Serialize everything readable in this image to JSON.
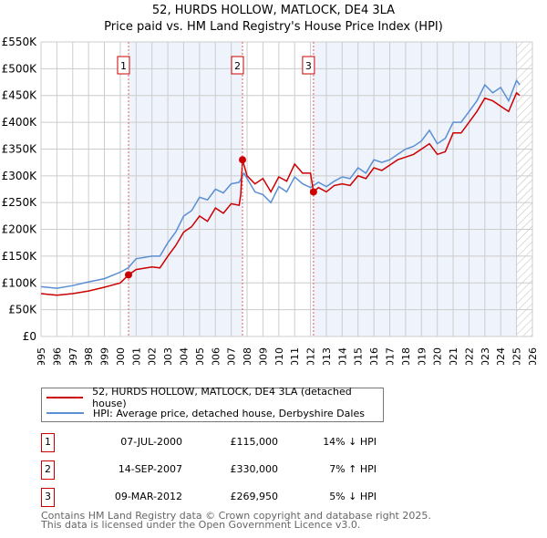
{
  "header": {
    "title_line1": "52, HURDS HOLLOW, MATLOCK, DE4 3LA",
    "title_line2": "Price paid vs. HM Land Registry's House Price Index (HPI)"
  },
  "chart_data": {
    "type": "line",
    "title": "52, HURDS HOLLOW, MATLOCK, DE4 3LA — Price paid vs. HM Land Registry's House Price Index (HPI)",
    "xlim": [
      1995,
      2026
    ],
    "ylim": [
      0,
      550000
    ],
    "x_ticks": [
      "1995",
      "1996",
      "1997",
      "1998",
      "1999",
      "2000",
      "2001",
      "2002",
      "2003",
      "2004",
      "2005",
      "2006",
      "2007",
      "2008",
      "2009",
      "2010",
      "2011",
      "2012",
      "2013",
      "2014",
      "2015",
      "2016",
      "2017",
      "2018",
      "2019",
      "2020",
      "2021",
      "2022",
      "2023",
      "2024",
      "2025",
      "2026"
    ],
    "y_ticks": [
      {
        "v": 0,
        "label": "£0"
      },
      {
        "v": 50000,
        "label": "£50K"
      },
      {
        "v": 100000,
        "label": "£100K"
      },
      {
        "v": 150000,
        "label": "£150K"
      },
      {
        "v": 200000,
        "label": "£200K"
      },
      {
        "v": 250000,
        "label": "£250K"
      },
      {
        "v": 300000,
        "label": "£300K"
      },
      {
        "v": 350000,
        "label": "£350K"
      },
      {
        "v": 400000,
        "label": "£400K"
      },
      {
        "v": 450000,
        "label": "£450K"
      },
      {
        "v": 500000,
        "label": "£500K"
      },
      {
        "v": 550000,
        "label": "£550K"
      }
    ],
    "grid": true,
    "colors": {
      "property": "#cc0000",
      "hpi": "#5b8fd4",
      "shade": "#eef3fc",
      "marker_line": "#e06060"
    },
    "forecast_hatch_from": 2025.0,
    "series": [
      {
        "name": "52, HURDS HOLLOW, MATLOCK, DE4 3LA (detached house)",
        "color": "#cc0000",
        "x": [
          1995,
          1996,
          1997,
          1998,
          1999,
          2000,
          2000.52,
          2001,
          2002,
          2002.5,
          2003,
          2003.5,
          2004,
          2004.5,
          2005,
          2005.5,
          2006,
          2006.5,
          2007,
          2007.5,
          2007.6,
          2007.71,
          2008,
          2008.5,
          2009,
          2009.5,
          2010,
          2010.5,
          2011,
          2011.5,
          2012,
          2012.19,
          2012.5,
          2013,
          2013.5,
          2014,
          2014.5,
          2015,
          2015.5,
          2016,
          2016.5,
          2017,
          2017.5,
          2018,
          2018.5,
          2019,
          2019.5,
          2020,
          2020.5,
          2021,
          2021.5,
          2022,
          2022.5,
          2023,
          2023.5,
          2024,
          2024.5,
          2025,
          2025.2
        ],
        "y": [
          80000,
          77000,
          80000,
          85000,
          92000,
          100000,
          115000,
          125000,
          130000,
          128000,
          150000,
          170000,
          195000,
          205000,
          225000,
          215000,
          240000,
          230000,
          248000,
          245000,
          265000,
          330000,
          300000,
          285000,
          295000,
          270000,
          298000,
          290000,
          322000,
          305000,
          305000,
          269950,
          278000,
          270000,
          282000,
          285000,
          282000,
          300000,
          295000,
          315000,
          310000,
          320000,
          330000,
          335000,
          340000,
          350000,
          360000,
          340000,
          345000,
          380000,
          380000,
          400000,
          420000,
          445000,
          440000,
          430000,
          420000,
          455000,
          450000
        ]
      },
      {
        "name": "HPI: Average price, detached house, Derbyshire Dales",
        "color": "#5b8fd4",
        "x": [
          1995,
          1996,
          1997,
          1998,
          1999,
          2000,
          2000.5,
          2001,
          2002,
          2002.5,
          2003,
          2003.5,
          2004,
          2004.5,
          2005,
          2005.5,
          2006,
          2006.5,
          2007,
          2007.5,
          2007.8,
          2008,
          2008.5,
          2009,
          2009.5,
          2010,
          2010.5,
          2011,
          2011.5,
          2012,
          2012.5,
          2013,
          2013.5,
          2014,
          2014.5,
          2015,
          2015.5,
          2016,
          2016.5,
          2017,
          2017.5,
          2018,
          2018.5,
          2019,
          2019.5,
          2020,
          2020.5,
          2021,
          2021.5,
          2022,
          2022.5,
          2023,
          2023.5,
          2024,
          2024.5,
          2025,
          2025.2
        ],
        "y": [
          93000,
          90000,
          95000,
          102000,
          108000,
          120000,
          128000,
          145000,
          150000,
          150000,
          175000,
          195000,
          225000,
          235000,
          260000,
          255000,
          275000,
          268000,
          285000,
          288000,
          305000,
          295000,
          270000,
          265000,
          250000,
          280000,
          270000,
          298000,
          285000,
          278000,
          288000,
          280000,
          290000,
          298000,
          295000,
          315000,
          305000,
          330000,
          325000,
          330000,
          340000,
          350000,
          355000,
          365000,
          385000,
          360000,
          370000,
          400000,
          400000,
          420000,
          440000,
          470000,
          455000,
          465000,
          440000,
          478000,
          470000
        ]
      }
    ],
    "sales": [
      {
        "num": "1",
        "x": 2000.52,
        "price": 115000
      },
      {
        "num": "2",
        "x": 2007.71,
        "price": 330000
      },
      {
        "num": "3",
        "x": 2012.19,
        "price": 269950
      }
    ]
  },
  "legend": {
    "property": "52, HURDS HOLLOW, MATLOCK, DE4 3LA (detached house)",
    "hpi": "HPI: Average price, detached house, Derbyshire Dales"
  },
  "sales_table": [
    {
      "num": "1",
      "date": "07-JUL-2000",
      "price": "£115,000",
      "hpi": "14% ↓ HPI"
    },
    {
      "num": "2",
      "date": "14-SEP-2007",
      "price": "£330,000",
      "hpi": "7% ↑ HPI"
    },
    {
      "num": "3",
      "date": "09-MAR-2012",
      "price": "£269,950",
      "hpi": "5% ↓ HPI"
    }
  ],
  "footer": {
    "line1": "Contains HM Land Registry data © Crown copyright and database right 2025.",
    "line2": "This data is licensed under the Open Government Licence v3.0."
  }
}
